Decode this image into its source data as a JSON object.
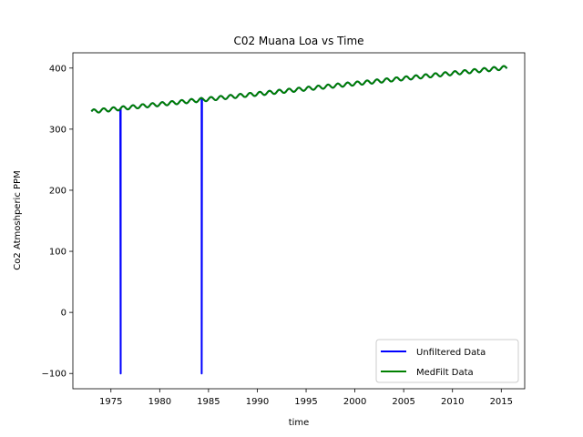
{
  "chart_data": {
    "type": "line",
    "title": "C02 Muana Loa vs Time",
    "xlabel": "time",
    "ylabel": "Co2 Atmoshperic PPM",
    "xlim": [
      1971.1,
      2017.4
    ],
    "ylim": [
      -125,
      425
    ],
    "x_ticks": [
      1975,
      1980,
      1985,
      1990,
      1995,
      2000,
      2005,
      2010,
      2015
    ],
    "y_ticks": [
      -100,
      0,
      100,
      200,
      300,
      400
    ],
    "legend_position": "lower-right",
    "grid": false,
    "series": [
      {
        "name": "Unfiltered Data",
        "color": "#0000ff",
        "x_start": 1973.0,
        "x_end": 2015.6,
        "trend_start": 329,
        "trend_end": 401,
        "seasonal_amplitude": 3,
        "dropouts": [
          {
            "x": 1976.0,
            "y": -100
          },
          {
            "x": 1984.3,
            "y": -100
          }
        ]
      },
      {
        "name": "MedFilt Data",
        "color": "#008000",
        "x_start": 1973.0,
        "x_end": 2015.6,
        "trend_start": 329,
        "trend_end": 401,
        "seasonal_amplitude": 3
      }
    ]
  }
}
